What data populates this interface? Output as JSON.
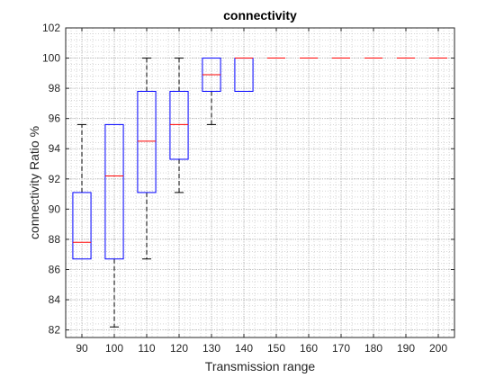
{
  "chart_data": {
    "type": "box",
    "title": "connectivity",
    "xlabel": "Transmission range",
    "ylabel": "connectivity Ratio %",
    "ylim": [
      81.5,
      102
    ],
    "yticks": [
      82,
      84,
      86,
      88,
      90,
      92,
      94,
      96,
      98,
      100,
      102
    ],
    "categories": [
      "90",
      "100",
      "110",
      "120",
      "130",
      "140",
      "150",
      "160",
      "170",
      "180",
      "190",
      "200"
    ],
    "grid": "major-and-minor-dotted",
    "colors": {
      "box": "#0000ff",
      "median": "#ff0000",
      "whisker": "#000000",
      "axis": "#262626",
      "grid": "#bdbdbd"
    },
    "boxes": [
      {
        "min": 86.7,
        "q1": 86.7,
        "median": 87.8,
        "q3": 91.1,
        "max": 95.6
      },
      {
        "min": 82.2,
        "q1": 86.7,
        "median": 92.2,
        "q3": 95.6,
        "max": 95.6
      },
      {
        "min": 86.7,
        "q1": 91.1,
        "median": 94.5,
        "q3": 97.8,
        "max": 100
      },
      {
        "min": 91.1,
        "q1": 93.3,
        "median": 95.6,
        "q3": 97.8,
        "max": 100
      },
      {
        "min": 95.6,
        "q1": 97.8,
        "median": 98.9,
        "q3": 100,
        "max": 100
      },
      {
        "min": 97.8,
        "q1": 97.8,
        "median": 100,
        "q3": 100,
        "max": 100
      },
      {
        "min": 100,
        "q1": 100,
        "median": 100,
        "q3": 100,
        "max": 100
      },
      {
        "min": 100,
        "q1": 100,
        "median": 100,
        "q3": 100,
        "max": 100
      },
      {
        "min": 100,
        "q1": 100,
        "median": 100,
        "q3": 100,
        "max": 100
      },
      {
        "min": 100,
        "q1": 100,
        "median": 100,
        "q3": 100,
        "max": 100
      },
      {
        "min": 100,
        "q1": 100,
        "median": 100,
        "q3": 100,
        "max": 100
      },
      {
        "min": 100,
        "q1": 100,
        "median": 100,
        "q3": 100,
        "max": 100
      }
    ]
  }
}
